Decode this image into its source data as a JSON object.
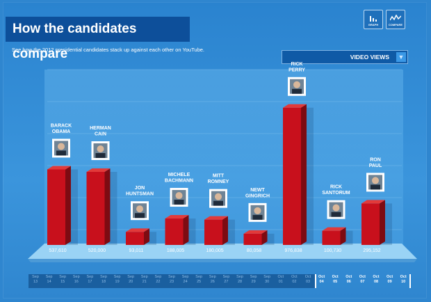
{
  "title": "How the candidates compare",
  "subtitle": "See how the 2012 presidential candidates stack up against each other on YouTube.",
  "view_buttons": [
    {
      "label": "GRAPH",
      "icon": "bar-graph-icon"
    },
    {
      "label": "COMPARE",
      "icon": "line-compare-icon"
    }
  ],
  "metric_select": {
    "selected": "VIDEO VIEWS",
    "icon": "chevron-down-icon"
  },
  "colors": {
    "bar": "#c8101c",
    "bar_top": "#e23a3a",
    "bar_side": "#7d0b12",
    "accent": "#0d4f9a"
  },
  "chart_data": {
    "type": "bar",
    "categories": [
      "BARACK OBAMA",
      "HERMAN CAIN",
      "JON HUNTSMAN",
      "MICHELE BACHMANN",
      "MITT ROMNEY",
      "NEWT GINGRICH",
      "RICK PERRY",
      "RICK SANTORUM",
      "RON PAUL"
    ],
    "label_lines": [
      [
        "BARACK",
        "OBAMA"
      ],
      [
        "HERMAN",
        "CAIN"
      ],
      [
        "JON",
        "HUNTSMAN"
      ],
      [
        "MICHELE",
        "BACHMANN"
      ],
      [
        "MITT",
        "ROMNEY"
      ],
      [
        "NEWT",
        "GINGRICH"
      ],
      [
        "RICK",
        "PERRY"
      ],
      [
        "RICK",
        "SANTORUM"
      ],
      [
        "RON",
        "PAUL"
      ]
    ],
    "values": [
      537610,
      520000,
      93011,
      188005,
      180005,
      80058,
      976838,
      100730,
      295152
    ],
    "value_labels": [
      "537,610",
      "520,000",
      "93,011",
      "188,005",
      "180,005",
      "80,058",
      "976,838",
      "100,730",
      "295,152"
    ],
    "ylim": [
      0,
      1050000
    ],
    "grid": true,
    "timeline": [
      "Sep 13",
      "Sep 14",
      "Sep 15",
      "Sep 16",
      "Sep 17",
      "Sep 18",
      "Sep 19",
      "Sep 20",
      "Sep 21",
      "Sep 22",
      "Sep 23",
      "Sep 24",
      "Sep 25",
      "Sep 26",
      "Sep 27",
      "Sep 28",
      "Sep 29",
      "Sep 30",
      "Oct 01",
      "Oct 02",
      "Oct 03",
      "Oct 04",
      "Oct 05",
      "Oct 06",
      "Oct 07",
      "Oct 08",
      "Oct 09",
      "Oct 10"
    ],
    "timeline_selected_range": [
      "Oct 04",
      "Oct 10"
    ]
  }
}
